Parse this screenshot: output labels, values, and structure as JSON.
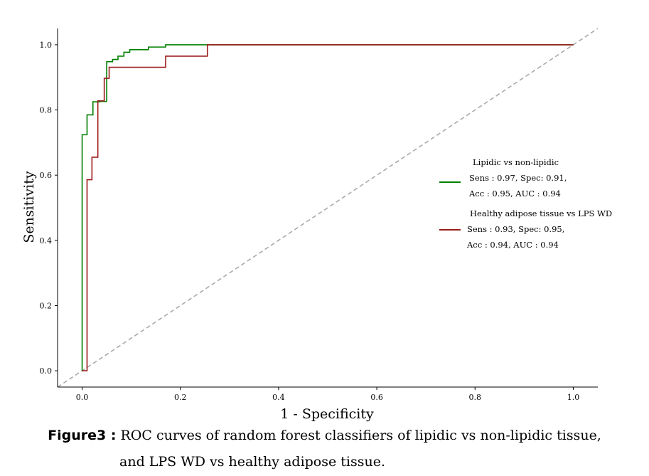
{
  "chart_data": {
    "type": "line",
    "xlabel": "1 - Specificity",
    "ylabel": "Sensitivity",
    "xlim": [
      -0.05,
      1.05
    ],
    "ylim": [
      -0.05,
      1.05
    ],
    "xticks": [
      "0.0",
      "0.2",
      "0.4",
      "0.6",
      "0.8",
      "1.0"
    ],
    "yticks": [
      "0.0",
      "0.2",
      "0.4",
      "0.6",
      "0.8",
      "1.0"
    ],
    "grid": false,
    "legend_position": "right",
    "series": [
      {
        "name": "Lipidic vs non-lipidic",
        "name_lines": [
          "Sens : 0.97, Spec: 0.91,",
          "Acc : 0.95, AUC : 0.94"
        ],
        "color": "#008000",
        "x": [
          0.0,
          0.0,
          0.01,
          0.01,
          0.022,
          0.022,
          0.035,
          0.035,
          0.05,
          0.05,
          0.062,
          0.062,
          0.073,
          0.073,
          0.085,
          0.085,
          0.097,
          0.097,
          0.135,
          0.135,
          0.17,
          0.17,
          0.255,
          1.0
        ],
        "y": [
          0.0,
          0.724,
          0.724,
          0.785,
          0.785,
          0.825,
          0.825,
          0.826,
          0.826,
          0.948,
          0.948,
          0.955,
          0.955,
          0.965,
          0.965,
          0.977,
          0.977,
          0.985,
          0.985,
          0.993,
          0.993,
          1.0,
          1.0,
          1.0
        ]
      },
      {
        "name": "Healthy adipose tissue vs LPS WD",
        "name_lines": [
          "Sens : 0.93, Spec: 0.95,",
          "Acc : 0.94, AUC : 0.94"
        ],
        "color": "#9b1c1c",
        "x": [
          0.0,
          0.01,
          0.01,
          0.02,
          0.02,
          0.032,
          0.032,
          0.045,
          0.045,
          0.055,
          0.055,
          0.17,
          0.17,
          0.255,
          0.255,
          1.0
        ],
        "y": [
          0.0,
          0.0,
          0.586,
          0.586,
          0.655,
          0.655,
          0.828,
          0.828,
          0.897,
          0.897,
          0.931,
          0.931,
          0.965,
          0.965,
          1.0,
          1.0
        ]
      }
    ],
    "reference_line": {
      "x": [
        -0.05,
        1.05
      ],
      "y": [
        -0.05,
        1.05
      ],
      "color": "#aaaaaa"
    }
  },
  "caption": {
    "label": "Figure3 :",
    "line1": "ROC curves of random forest classifiers of lipidic vs non-lipidic tissue,",
    "line2": "and LPS WD vs healthy adipose tissue."
  }
}
